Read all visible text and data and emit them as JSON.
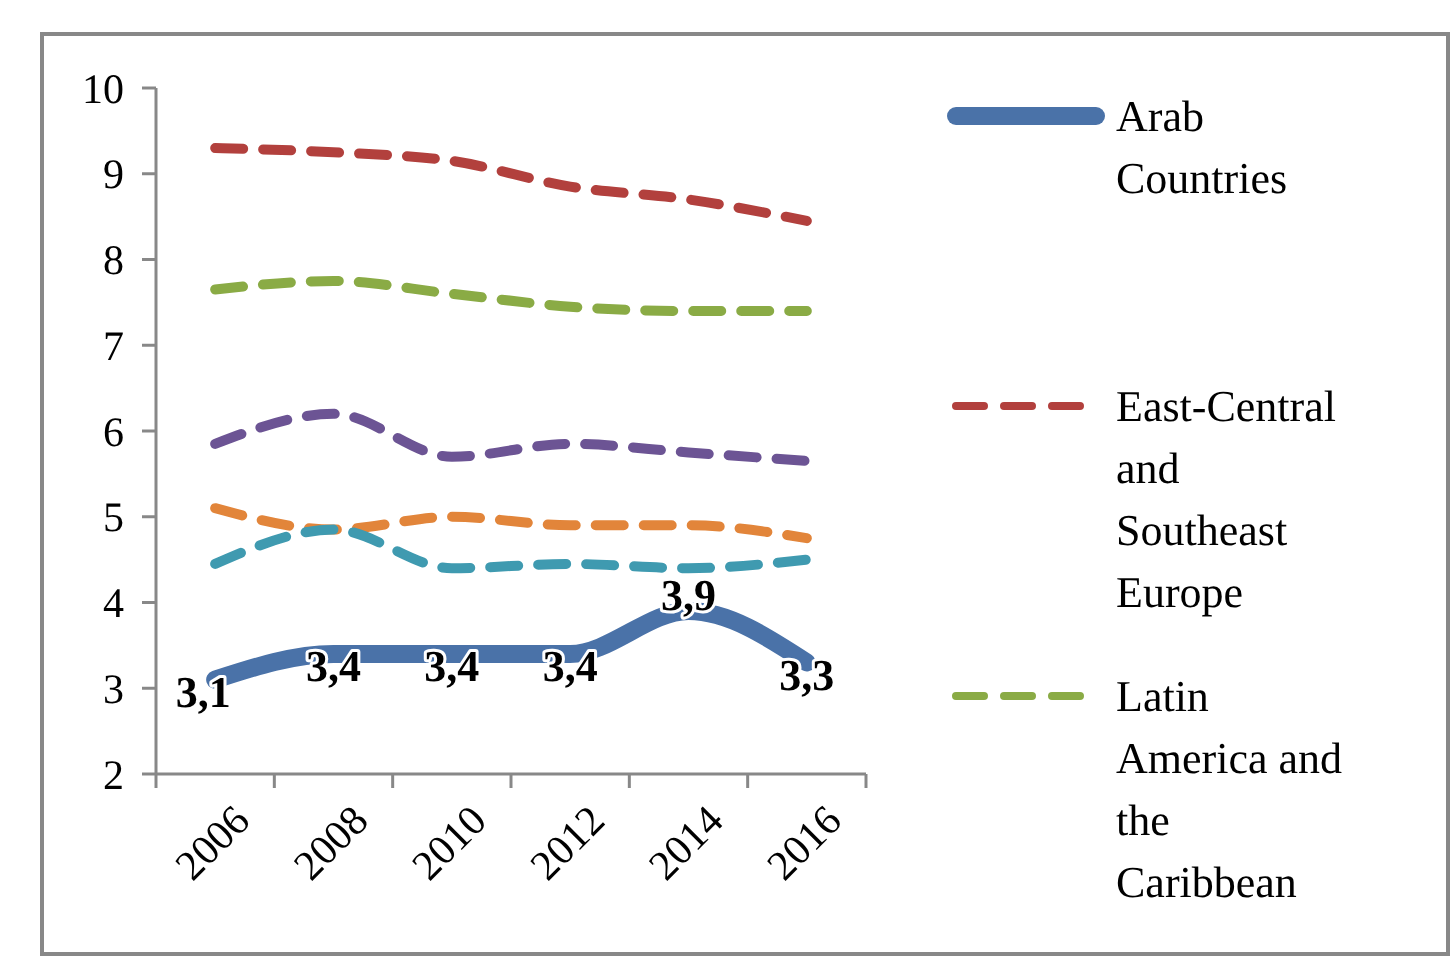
{
  "chart_data": {
    "type": "line",
    "categories": [
      "2006",
      "2008",
      "2010",
      "2012",
      "2014",
      "2016"
    ],
    "ylim": [
      2,
      10
    ],
    "yticks": [
      2,
      3,
      4,
      5,
      6,
      7,
      8,
      9,
      10
    ],
    "grid": false,
    "legend": "right",
    "marker": "none",
    "series": [
      {
        "name": "Arab Countries",
        "color": "#4a72a8",
        "line_style": "solid",
        "values": [
          3.1,
          3.4,
          3.4,
          3.4,
          3.9,
          3.3
        ],
        "value_labels": [
          "3,1",
          "3,4",
          "3,4",
          "3,4",
          "3,9",
          "3,3"
        ]
      },
      {
        "name": "East-Central and Southeast Europe",
        "color": "#b2403d",
        "line_style": "dashed",
        "values": [
          9.3,
          9.25,
          9.15,
          8.85,
          8.7,
          8.45
        ]
      },
      {
        "name": "Latin America and the Caribbean",
        "color": "#8aab45",
        "line_style": "dashed",
        "values": [
          7.65,
          7.75,
          7.6,
          7.45,
          7.4,
          7.4
        ]
      },
      {
        "color": "#6c5494",
        "line_style": "dashed",
        "values": [
          5.85,
          6.2,
          5.7,
          5.85,
          5.75,
          5.65
        ]
      },
      {
        "color": "#e2853a",
        "line_style": "dashed",
        "values": [
          5.1,
          4.85,
          5.0,
          4.9,
          4.9,
          4.75
        ]
      },
      {
        "color": "#3f9ab0",
        "line_style": "dashed",
        "values": [
          4.45,
          4.85,
          4.4,
          4.45,
          4.4,
          4.5
        ]
      }
    ]
  }
}
